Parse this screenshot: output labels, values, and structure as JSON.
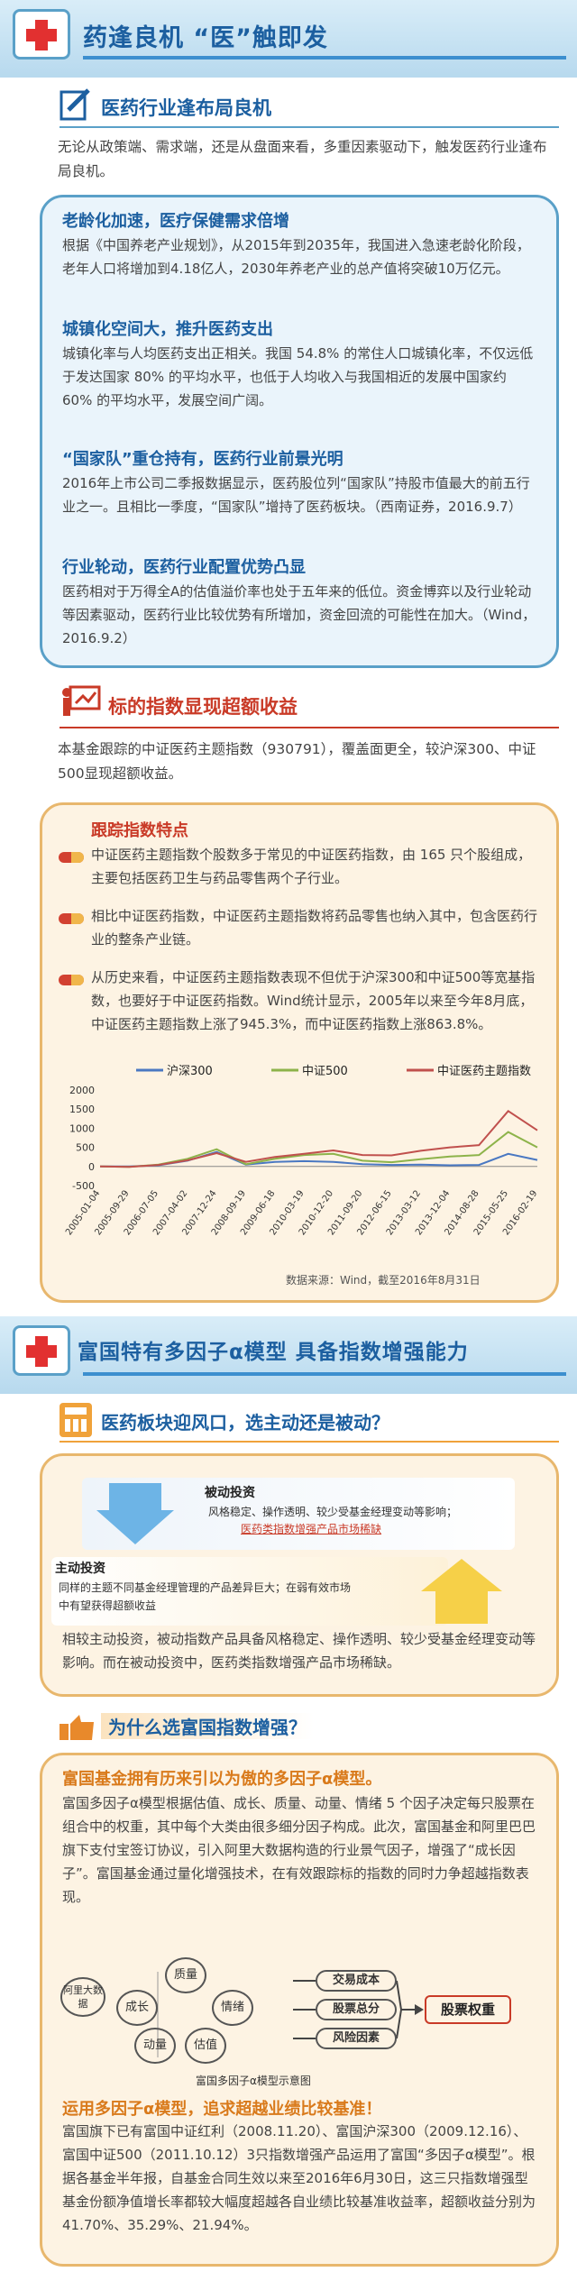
{
  "section1": {
    "title": "药逢良机 “医”触即发",
    "sub_title": "医药行业逢布局良机",
    "intro": "无论从政策端、需求端，还是从盘面来看，多重因素驱动下，触发医药行业逢布局良机。",
    "points": [
      {
        "heading": "老龄化加速，医疗保健需求倍增",
        "body": "根据《中国养老产业规划》，从2015年到2035年，我国进入急速老龄化阶段，老年人口将增加到4.18亿人，2030年养老产业的总产值将突破10万亿元。"
      },
      {
        "heading": "城镇化空间大，推升医药支出",
        "body": "城镇化率与人均医药支出正相关。我国 54.8% 的常住人口城镇化率，不仅远低于发达国家 80% 的平均水平，也低于人均收入与我国相近的发展中国家约 60% 的平均水平，发展空间广阔。"
      },
      {
        "heading": "“国家队”重仓持有，医药行业前景光明",
        "body": "2016年上市公司二季报数据显示，医药股位列“国家队”持股市值最大的前五行业之一。且相比一季度，“国家队”增持了医药板块。（西南证券，2016.9.7）"
      },
      {
        "heading": "行业轮动，医药行业配置优势凸显",
        "body": "医药相对于万得全A的估值溢价率也处于五年来的低位。资金博弈以及行业轮动等因素驱动，医药行业比较优势有所增加，资金回流的可能性在加大。（Wind，2016.9.2）"
      }
    ]
  },
  "section2": {
    "sub_title": "标的指数显现超额收益",
    "intro": "本基金跟踪的中证医药主题指数（930791），覆盖面更全，较沪深300、中证500显现超额收益。",
    "box_title": "跟踪指数特点",
    "points": [
      "中证医药主题指数个股数多于常见的中证医药指数，由 165 只个股组成，主要包括医药卫生与药品零售两个子行业。",
      "相比中证医药指数，中证医药主题指数将药品零售也纳入其中，包含医药行业的整条产业链。",
      "从历史来看，中证医药主题指数表现不但优于沪深300和中证500等宽基指数，也要好于中证医药指数。Wind统计显示，2005年以来至今年8月底，中证医药主题指数上涨了945.3%，而中证医药指数上涨863.8%。"
    ],
    "source": "数据来源：Wind，截至2016年8月31日"
  },
  "chart_data": {
    "type": "line",
    "legend": [
      "沪深300",
      "中证500",
      "中证医药主题指数"
    ],
    "colors": [
      "#4a78c2",
      "#8db34a",
      "#c0504d"
    ],
    "ylim": [
      -500,
      2000
    ],
    "yticks": [
      -500,
      0,
      500,
      1000,
      1500,
      2000
    ],
    "x": [
      "2005-01-04",
      "2005-09-29",
      "2006-07-05",
      "2007-04-02",
      "2007-12-24",
      "2008-09-19",
      "2009-06-18",
      "2010-03-19",
      "2010-12-20",
      "2011-09-20",
      "2012-06-15",
      "2013-03-12",
      "2013-12-04",
      "2014-08-28",
      "2015-05-25",
      "2016-02-19"
    ],
    "series": [
      {
        "name": "沪深300",
        "values": [
          0,
          0,
          30,
          150,
          380,
          50,
          120,
          140,
          120,
          60,
          40,
          50,
          30,
          40,
          330,
          170
        ]
      },
      {
        "name": "中证500",
        "values": [
          0,
          -10,
          50,
          200,
          450,
          60,
          200,
          300,
          330,
          150,
          110,
          190,
          260,
          300,
          900,
          500
        ]
      },
      {
        "name": "中证医药主题指数",
        "values": [
          0,
          -10,
          40,
          160,
          350,
          120,
          250,
          330,
          420,
          300,
          290,
          410,
          500,
          560,
          1450,
          945
        ]
      }
    ]
  },
  "section3": {
    "title": "富国特有多因子α模型 具备指数增强能力",
    "sub1": "医药板块迎风口，选主动还是被动？",
    "passive_title": "被动投资",
    "passive_body": "风格稳定、操作透明、较少受基金经理变动等影响；",
    "passive_red": "医药类指数增强产品市场稀缺",
    "active_title": "主动投资",
    "active_body": "同样的主题不同基金经理管理的产品差异巨大；在弱有效市场中有望获得超额收益",
    "compare_text": "相较主动投资，被动指数产品具备风格稳定、操作透明、较少受基金经理变动等影响。而在被动投资中，医药类指数增强产品市场稀缺。",
    "sub2": "为什么选富国指数增强？",
    "model_heading": "富国基金拥有历来引以为傲的多因子α模型。",
    "model_body": "富国多因子α模型根据估值、成长、质量、动量、情绪 5 个因子决定每只股票在组合中的权重，其中每个大类由很多细分因子构成。此次，富国基金和阿里巴巴旗下支付宝签订协议，引入阿里大数据构造的行业景气因子，增强了“成长因子”。富国基金通过量化增强技术，在有效跟踪标的指数的同时力争超越指数表现。",
    "diagram": {
      "center_nodes": [
        "阿里大数据",
        "成长",
        "质量",
        "情绪",
        "动量",
        "估值"
      ],
      "middle_nodes": [
        "交易成本",
        "股票总分",
        "风险因素"
      ],
      "result": "股票权重",
      "caption": "富国多因子α模型示意图"
    },
    "result_heading": "运用多因子α模型，追求超越业绩比较基准！",
    "result_body": "富国旗下已有富国中证红利（2008.11.20）、富国沪深300（2009.12.16）、富国中证500（2011.10.12）3只指数增强产品运用了富国“多因子α模型”。根据各基金半年报，自基金合同生效以来至2016年6月30日，这三只指数增强型基金份额净值增长率都较大幅度超越各自业绩比较基准收益率，超额收益分别为41.70%、35.29%、21.94%。"
  }
}
